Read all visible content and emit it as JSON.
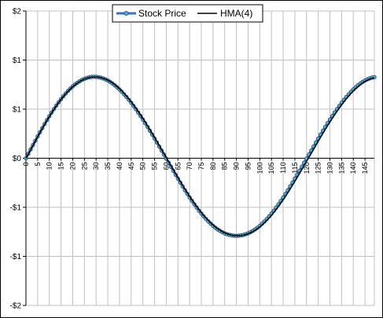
{
  "chart_data": {
    "type": "line",
    "title": "",
    "xlabel": "",
    "ylabel": "",
    "x_range": [
      0,
      149
    ],
    "ylim": [
      -1.5,
      1.5
    ],
    "y_tick_values": [
      1.5,
      1.0,
      0.5,
      0.0,
      -0.5,
      -1.0,
      -1.5
    ],
    "y_tick_labels": [
      "$2",
      "$1",
      "$1",
      "$0",
      "-$1",
      "-$1",
      "-$2"
    ],
    "x_tick_labels": [
      "0",
      "5",
      "10",
      "15",
      "20",
      "25",
      "30",
      "35",
      "40",
      "45",
      "50",
      "55",
      "60",
      "65",
      "70",
      "75",
      "80",
      "85",
      "90",
      "95",
      "100",
      "105",
      "110",
      "115",
      "120",
      "125",
      "130",
      "135",
      "140",
      "145"
    ],
    "grid": true,
    "legend_position": "top-center",
    "plot_background": "#ffffff",
    "gridline_color": "#c0c0c0",
    "series": [
      {
        "name": "Stock Price",
        "color": "#3a6fd8",
        "marker_fill": "#3fb6c8",
        "marker_edge": "#1a1a6a",
        "markers": true,
        "y": [
          0.0,
          0.045,
          0.09,
          0.134,
          0.178,
          0.222,
          0.265,
          0.307,
          0.349,
          0.389,
          0.428,
          0.466,
          0.502,
          0.537,
          0.571,
          0.602,
          0.632,
          0.66,
          0.686,
          0.71,
          0.732,
          0.752,
          0.769,
          0.785,
          0.798,
          0.809,
          0.818,
          0.824,
          0.828,
          0.83,
          0.829,
          0.826,
          0.821,
          0.813,
          0.804,
          0.792,
          0.778,
          0.762,
          0.743,
          0.723,
          0.701,
          0.677,
          0.651,
          0.624,
          0.595,
          0.565,
          0.533,
          0.5,
          0.466,
          0.43,
          0.394,
          0.357,
          0.319,
          0.28,
          0.241,
          0.201,
          0.16,
          0.119,
          0.078,
          0.037,
          -0.004,
          -0.045,
          -0.086,
          -0.127,
          -0.168,
          -0.208,
          -0.248,
          -0.287,
          -0.326,
          -0.363,
          -0.4,
          -0.435,
          -0.469,
          -0.502,
          -0.534,
          -0.564,
          -0.592,
          -0.619,
          -0.644,
          -0.667,
          -0.689,
          -0.708,
          -0.725,
          -0.74,
          -0.754,
          -0.765,
          -0.774,
          -0.781,
          -0.786,
          -0.789,
          -0.79,
          -0.789,
          -0.786,
          -0.781,
          -0.774,
          -0.765,
          -0.754,
          -0.74,
          -0.725,
          -0.708,
          -0.689,
          -0.667,
          -0.644,
          -0.619,
          -0.592,
          -0.564,
          -0.534,
          -0.502,
          -0.469,
          -0.435,
          -0.4,
          -0.363,
          -0.326,
          -0.287,
          -0.248,
          -0.208,
          -0.168,
          -0.127,
          -0.086,
          -0.045,
          -0.004,
          0.037,
          0.078,
          0.119,
          0.16,
          0.201,
          0.241,
          0.28,
          0.319,
          0.357,
          0.394,
          0.43,
          0.466,
          0.5,
          0.533,
          0.565,
          0.595,
          0.624,
          0.651,
          0.677,
          0.701,
          0.723,
          0.743,
          0.762,
          0.778,
          0.792,
          0.804,
          0.813,
          0.821,
          0.826
        ]
      },
      {
        "name": "HMA(4)",
        "color": "#000000",
        "markers": false,
        "y": [
          0.0,
          0.04,
          0.085,
          0.13,
          0.174,
          0.218,
          0.261,
          0.303,
          0.345,
          0.385,
          0.424,
          0.462,
          0.498,
          0.533,
          0.567,
          0.598,
          0.628,
          0.656,
          0.682,
          0.706,
          0.728,
          0.748,
          0.766,
          0.782,
          0.795,
          0.806,
          0.815,
          0.822,
          0.826,
          0.828,
          0.828,
          0.826,
          0.821,
          0.814,
          0.806,
          0.795,
          0.782,
          0.767,
          0.749,
          0.73,
          0.708,
          0.685,
          0.66,
          0.633,
          0.605,
          0.575,
          0.544,
          0.511,
          0.477,
          0.442,
          0.406,
          0.369,
          0.331,
          0.292,
          0.253,
          0.213,
          0.172,
          0.131,
          0.09,
          0.049,
          0.008,
          -0.033,
          -0.074,
          -0.115,
          -0.156,
          -0.196,
          -0.236,
          -0.275,
          -0.314,
          -0.351,
          -0.388,
          -0.424,
          -0.458,
          -0.491,
          -0.523,
          -0.553,
          -0.582,
          -0.609,
          -0.634,
          -0.658,
          -0.68,
          -0.7,
          -0.718,
          -0.734,
          -0.748,
          -0.76,
          -0.77,
          -0.778,
          -0.784,
          -0.788,
          -0.79,
          -0.79,
          -0.788,
          -0.784,
          -0.778,
          -0.77,
          -0.76,
          -0.748,
          -0.734,
          -0.718,
          -0.7,
          -0.68,
          -0.658,
          -0.634,
          -0.609,
          -0.582,
          -0.553,
          -0.523,
          -0.491,
          -0.458,
          -0.424,
          -0.388,
          -0.351,
          -0.314,
          -0.275,
          -0.236,
          -0.196,
          -0.156,
          -0.115,
          -0.074,
          -0.033,
          0.008,
          0.049,
          0.09,
          0.131,
          0.172,
          0.213,
          0.253,
          0.292,
          0.331,
          0.369,
          0.406,
          0.442,
          0.477,
          0.511,
          0.544,
          0.575,
          0.605,
          0.633,
          0.66,
          0.685,
          0.708,
          0.73,
          0.749,
          0.767,
          0.782,
          0.795,
          0.806,
          0.814,
          0.82
        ]
      }
    ]
  }
}
